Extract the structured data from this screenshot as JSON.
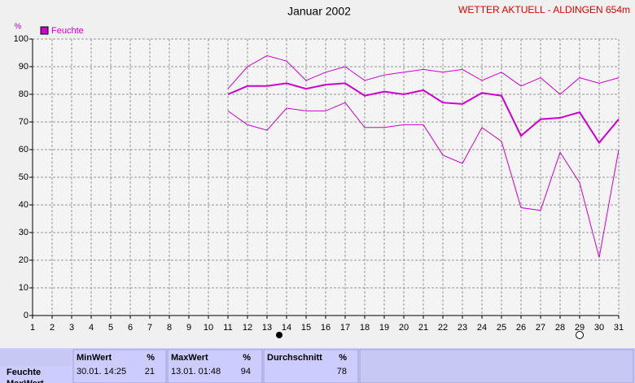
{
  "chart_data": {
    "type": "line",
    "title": "Januar 2002",
    "annotation": "WETTER AKTUELL - ALDINGEN 654m",
    "y_label": "%",
    "x": [
      11,
      12,
      13,
      14,
      15,
      16,
      17,
      18,
      19,
      20,
      21,
      22,
      23,
      24,
      25,
      26,
      27,
      28,
      29,
      30,
      31
    ],
    "series": [
      {
        "name": "Feuchte",
        "color": "#cc00cc",
        "values": [
          80,
          83,
          83,
          84,
          82,
          83.5,
          84,
          79.5,
          81,
          80,
          81.5,
          77,
          76.5,
          80.5,
          79.5,
          65,
          71,
          71.5,
          73.5,
          62.5,
          71
        ],
        "max": [
          82,
          90,
          94,
          92,
          85,
          88,
          90,
          85,
          87,
          88,
          89,
          88,
          89,
          85,
          88,
          83,
          86,
          80,
          86,
          84,
          86
        ],
        "min": [
          74,
          69,
          67,
          75,
          74,
          74,
          77,
          68,
          68,
          69,
          69,
          58,
          55,
          68,
          63,
          39,
          38,
          59,
          48,
          21,
          60
        ]
      }
    ],
    "xlim": [
      1,
      31
    ],
    "xticks": [
      1,
      2,
      3,
      4,
      5,
      6,
      7,
      8,
      9,
      10,
      11,
      12,
      13,
      14,
      15,
      16,
      17,
      18,
      19,
      20,
      21,
      22,
      23,
      24,
      25,
      26,
      27,
      28,
      29,
      30,
      31
    ],
    "ylim": [
      0,
      100
    ],
    "yticks": [
      0,
      10,
      20,
      30,
      40,
      50,
      60,
      70,
      80,
      90,
      100
    ],
    "grid": true
  },
  "table": {
    "row_label": "Feuchte",
    "next_row_label": "MaxWert",
    "columns": [
      {
        "header": "MinWert",
        "unit": "%",
        "time": "30.01.  14:25",
        "value": 21
      },
      {
        "header": "MaxWert",
        "unit": "%",
        "time": "13.01.  01:48",
        "value": 94
      },
      {
        "header": "Durchschnitt",
        "unit": "%",
        "value": 78
      }
    ]
  }
}
